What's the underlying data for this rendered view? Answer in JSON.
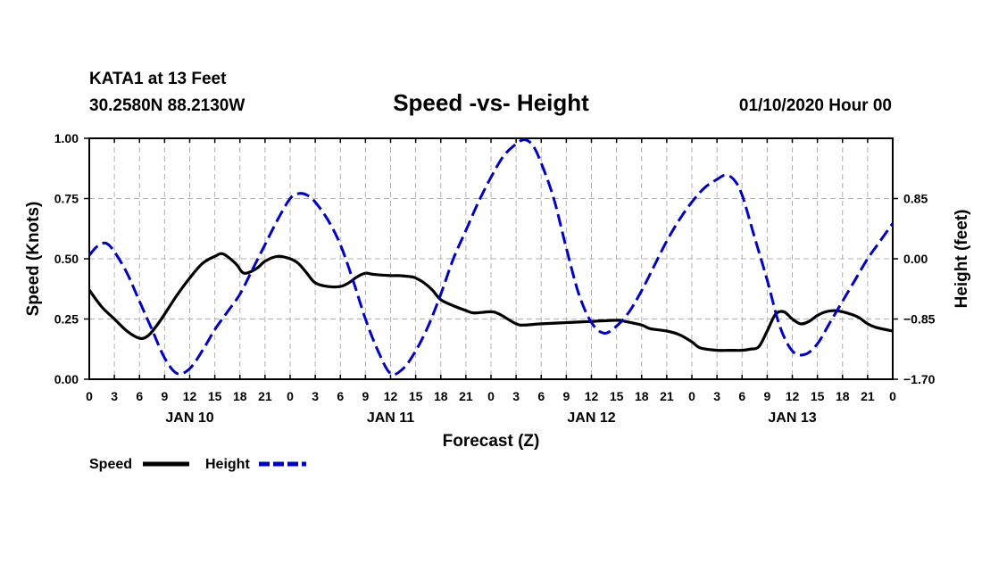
{
  "header": {
    "station": "KATA1 at 13 Feet",
    "coords": "30.2580N 88.2130W",
    "title": "Speed -vs- Height",
    "date": "01/10/2020 Hour 00"
  },
  "colors": {
    "speed": "#000000",
    "height": "#0000cc",
    "grid": "#b0b0b0"
  },
  "chart_data": {
    "type": "line",
    "title": "Speed -vs- Height",
    "xlabel": "Forecast (Z)",
    "ylabel": "Speed (Knots)",
    "ylabel_right": "Height (feet)",
    "x_range_hours": [
      0,
      96
    ],
    "x_tick_labels": [
      "0",
      "3",
      "6",
      "9",
      "12",
      "15",
      "18",
      "21",
      "0",
      "3",
      "6",
      "9",
      "12",
      "15",
      "18",
      "21",
      "0",
      "3",
      "6",
      "9",
      "12",
      "15",
      "18",
      "21",
      "0",
      "3",
      "6",
      "9",
      "12",
      "15",
      "18",
      "21",
      "0"
    ],
    "day_labels": [
      {
        "label": "JAN 10",
        "hour": 12
      },
      {
        "label": "JAN 11",
        "hour": 36
      },
      {
        "label": "JAN 12",
        "hour": 60
      },
      {
        "label": "JAN 13",
        "hour": 84
      }
    ],
    "y_left": {
      "range": [
        0,
        1.0
      ],
      "ticks": [
        0,
        0.25,
        0.5,
        0.75,
        1.0
      ],
      "tick_labels": [
        "0.00",
        "0.25",
        "0.50",
        "0.75",
        "1.00"
      ]
    },
    "y_right": {
      "range": [
        -1.7,
        1.7
      ],
      "ticks": [
        -1.7,
        -0.85,
        0.0,
        0.85
      ],
      "tick_labels": [
        "−1.70",
        "−0.85",
        "0.00",
        "0.85"
      ]
    },
    "series": [
      {
        "name": "Speed",
        "axis": "left",
        "style": "solid",
        "x": [
          0,
          1.5,
          3,
          4.5,
          6,
          7,
          8,
          9,
          10.5,
          12,
          13.5,
          15,
          16,
          17.5,
          18.5,
          20,
          21,
          22.5,
          24,
          25,
          26,
          27,
          28.5,
          30,
          31,
          32,
          33,
          34,
          36,
          37,
          38.5,
          39,
          40,
          41,
          42,
          43.5,
          45,
          46,
          48,
          49,
          51,
          52,
          54,
          57,
          60,
          63,
          64,
          66,
          67,
          69,
          70.5,
          72,
          73,
          75,
          76.5,
          78,
          79,
          80,
          81,
          82,
          83,
          84,
          85,
          86,
          87,
          88,
          89,
          90,
          91,
          92,
          93,
          94,
          96
        ],
        "values": [
          0.37,
          0.3,
          0.25,
          0.2,
          0.17,
          0.18,
          0.22,
          0.27,
          0.35,
          0.42,
          0.48,
          0.51,
          0.52,
          0.48,
          0.44,
          0.46,
          0.49,
          0.51,
          0.5,
          0.48,
          0.44,
          0.4,
          0.385,
          0.385,
          0.4,
          0.425,
          0.44,
          0.435,
          0.43,
          0.43,
          0.425,
          0.42,
          0.4,
          0.37,
          0.33,
          0.305,
          0.285,
          0.275,
          0.28,
          0.27,
          0.23,
          0.225,
          0.23,
          0.235,
          0.24,
          0.245,
          0.24,
          0.225,
          0.21,
          0.2,
          0.185,
          0.155,
          0.13,
          0.12,
          0.12,
          0.12,
          0.125,
          0.135,
          0.2,
          0.27,
          0.28,
          0.25,
          0.23,
          0.24,
          0.265,
          0.28,
          0.285,
          0.28,
          0.27,
          0.255,
          0.23,
          0.215,
          0.2
        ]
      },
      {
        "name": "Height",
        "axis": "right",
        "style": "dashed",
        "x": [
          0,
          1,
          2,
          3,
          4.5,
          6,
          7.5,
          9,
          10.5,
          12,
          13.5,
          15,
          16.5,
          18,
          19.5,
          21,
          22.5,
          24,
          25,
          26,
          27,
          28.5,
          30,
          31.5,
          33,
          34.5,
          36,
          37.5,
          39,
          40.5,
          42,
          43.5,
          45,
          46.5,
          48,
          49.5,
          51,
          52,
          53,
          54,
          55.5,
          57,
          58.5,
          60,
          61.5,
          63,
          64.5,
          66,
          67.5,
          69,
          70.5,
          72,
          73.5,
          75,
          76,
          77,
          78,
          79.5,
          81,
          82.5,
          84,
          85.5,
          87,
          88.5,
          90,
          91.5,
          93,
          94.5,
          96
        ],
        "values": [
          0.05,
          0.18,
          0.22,
          0.1,
          -0.2,
          -0.6,
          -1.0,
          -1.4,
          -1.62,
          -1.55,
          -1.3,
          -1.0,
          -0.75,
          -0.5,
          -0.15,
          0.2,
          0.55,
          0.85,
          0.92,
          0.9,
          0.8,
          0.55,
          0.2,
          -0.3,
          -0.85,
          -1.3,
          -1.62,
          -1.55,
          -1.3,
          -0.95,
          -0.5,
          0.0,
          0.4,
          0.8,
          1.15,
          1.45,
          1.62,
          1.68,
          1.6,
          1.35,
          0.85,
          0.15,
          -0.5,
          -0.9,
          -1.05,
          -0.95,
          -0.75,
          -0.45,
          -0.1,
          0.25,
          0.55,
          0.8,
          1.0,
          1.12,
          1.18,
          1.12,
          0.9,
          0.3,
          -0.3,
          -0.95,
          -1.3,
          -1.35,
          -1.2,
          -0.9,
          -0.6,
          -0.3,
          0.0,
          0.25,
          0.5
        ]
      }
    ],
    "legend": [
      {
        "label": "Speed",
        "style": "solid"
      },
      {
        "label": "Height",
        "style": "dashed"
      }
    ],
    "grid": true
  }
}
